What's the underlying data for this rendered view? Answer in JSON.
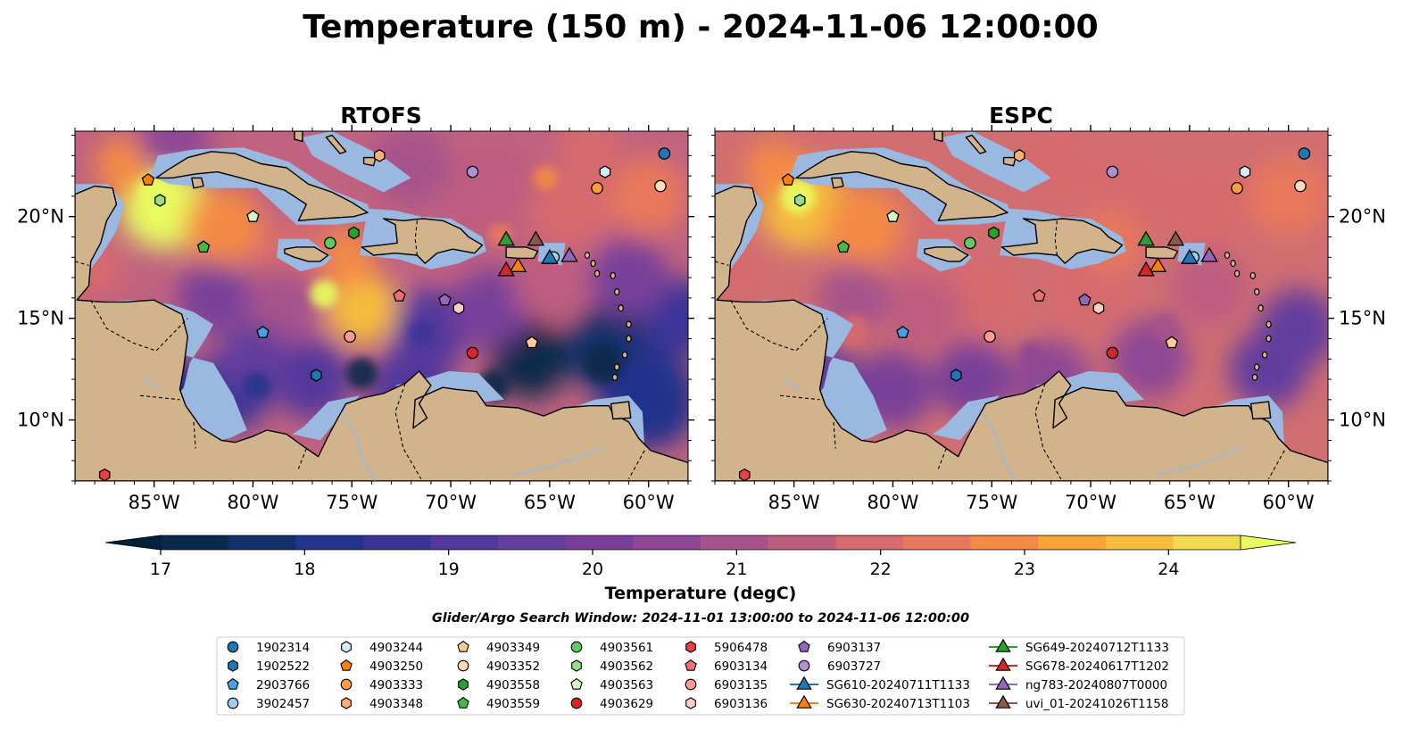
{
  "title": "Temperature (150 m) - 2024-11-06 12:00:00",
  "panels": [
    {
      "title": "RTOFS",
      "model": "rtofs"
    },
    {
      "title": "ESPC",
      "model": "espc"
    }
  ],
  "map": {
    "lon_range": [
      -89,
      -58
    ],
    "lat_range": [
      7,
      24.2
    ],
    "lon_ticks": [
      -85,
      -80,
      -75,
      -70,
      -65,
      -60
    ],
    "lon_tick_labels": [
      "85°W",
      "80°W",
      "75°W",
      "70°W",
      "65°W",
      "60°W"
    ],
    "lat_ticks": [
      10,
      15,
      20
    ],
    "lat_tick_labels": [
      "10°N",
      "15°N",
      "20°N"
    ],
    "colors": {
      "land": "#d2b48c",
      "shelf": "#9ab8e0",
      "deep_min": "#03213a",
      "coast": "#000000"
    }
  },
  "colorbar": {
    "label": "Temperature (degC)",
    "min": 17,
    "max": 24.5,
    "step": 0.5,
    "ticks": [
      17,
      18,
      19,
      20,
      21,
      22,
      23,
      24
    ],
    "tick_labels": [
      "17",
      "18",
      "19",
      "20",
      "21",
      "22",
      "23",
      "24"
    ],
    "colors": [
      "#0b2a4a",
      "#13306a",
      "#24338c",
      "#3b3497",
      "#52389c",
      "#643e9e",
      "#783f9a",
      "#8e4795",
      "#a6528c",
      "#be5d80",
      "#d66a6e",
      "#e9785c",
      "#f48a45",
      "#f9a338",
      "#f6bd3c",
      "#f0db4e"
    ],
    "under_color": "#02213a",
    "over_color": "#e8fc5e"
  },
  "search_window": "Glider/Argo Search Window: 2024-11-01 13:00:00 to 2024-11-06 12:00:00",
  "platforms": [
    {
      "id": "1902314",
      "marker": "circle",
      "color": "#1f77b4",
      "lon": -59.2,
      "lat": 23.1
    },
    {
      "id": "1902522",
      "marker": "hexagon",
      "color": "#1f77b4",
      "lon": -76.8,
      "lat": 12.2
    },
    {
      "id": "2903766",
      "marker": "pentagon",
      "color": "#4a9fe0",
      "lon": -79.5,
      "lat": 14.3
    },
    {
      "id": "3902457",
      "marker": "circle",
      "color": "#a4cdea",
      "lon": -64.8,
      "lat": 18.0
    },
    {
      "id": "4903244",
      "marker": "hexagon",
      "color": "#d6ebf7",
      "lon": -62.2,
      "lat": 22.2
    },
    {
      "id": "4903250",
      "marker": "pentagon",
      "color": "#ff7f0e",
      "lon": -85.3,
      "lat": 21.8
    },
    {
      "id": "4903333",
      "marker": "circle",
      "color": "#ff9b3c",
      "lon": -62.6,
      "lat": 21.4
    },
    {
      "id": "4903348",
      "marker": "hexagon",
      "color": "#ffb073",
      "lon": -73.6,
      "lat": 23.0
    },
    {
      "id": "4903349",
      "marker": "pentagon",
      "color": "#ffc998",
      "lon": -65.9,
      "lat": 13.8
    },
    {
      "id": "4903352",
      "marker": "circle",
      "color": "#ffdcbc",
      "lon": -59.4,
      "lat": 21.5
    },
    {
      "id": "4903558",
      "marker": "hexagon",
      "color": "#2ca02c",
      "lon": -74.9,
      "lat": 19.2
    },
    {
      "id": "4903559",
      "marker": "pentagon",
      "color": "#45b845",
      "lon": -82.5,
      "lat": 18.5
    },
    {
      "id": "4903561",
      "marker": "circle",
      "color": "#62c962",
      "lon": -76.1,
      "lat": 18.7
    },
    {
      "id": "4903562",
      "marker": "hexagon",
      "color": "#98df8a",
      "lon": -84.7,
      "lat": 20.8
    },
    {
      "id": "4903563",
      "marker": "pentagon",
      "color": "#d3f5c8",
      "lon": -80.0,
      "lat": 20.0
    },
    {
      "id": "4903629",
      "marker": "circle",
      "color": "#d62728",
      "lon": -68.9,
      "lat": 13.3
    },
    {
      "id": "5906478",
      "marker": "hexagon",
      "color": "#e8413f",
      "lon": -87.5,
      "lat": 7.3
    },
    {
      "id": "6903134",
      "marker": "pentagon",
      "color": "#f07070",
      "lon": -72.6,
      "lat": 16.1
    },
    {
      "id": "6903135",
      "marker": "circle",
      "color": "#ff9a96",
      "lon": -75.1,
      "lat": 14.1
    },
    {
      "id": "6903136",
      "marker": "hexagon",
      "color": "#ffcdcb",
      "lon": -69.6,
      "lat": 15.5
    },
    {
      "id": "6903137",
      "marker": "pentagon",
      "color": "#9467bd",
      "lon": -70.3,
      "lat": 15.9
    },
    {
      "id": "6903727",
      "marker": "circle",
      "color": "#b08fd4",
      "lon": -68.9,
      "lat": 22.2
    },
    {
      "id": "SG610-20240711T1133",
      "marker": "triangle",
      "color": "#1f77b4",
      "lon": -65.0,
      "lat": 18.0,
      "glider": true
    },
    {
      "id": "SG630-20240713T1103",
      "marker": "triangle",
      "color": "#ff7f0e",
      "lon": -66.6,
      "lat": 17.6,
      "glider": true
    },
    {
      "id": "SG649-20240712T1133",
      "marker": "triangle",
      "color": "#2ca02c",
      "lon": -67.2,
      "lat": 18.9,
      "glider": true
    },
    {
      "id": "SG678-20240617T1202",
      "marker": "triangle",
      "color": "#d62728",
      "lon": -67.2,
      "lat": 17.4,
      "glider": true
    },
    {
      "id": "ng783-20240807T0000",
      "marker": "triangle",
      "color": "#9467bd",
      "lon": -64.0,
      "lat": 18.1,
      "glider": true
    },
    {
      "id": "uvi_01-20241026T1158",
      "marker": "triangle",
      "color": "#8c564b",
      "lon": -65.7,
      "lat": 18.9,
      "glider": true
    }
  ]
}
